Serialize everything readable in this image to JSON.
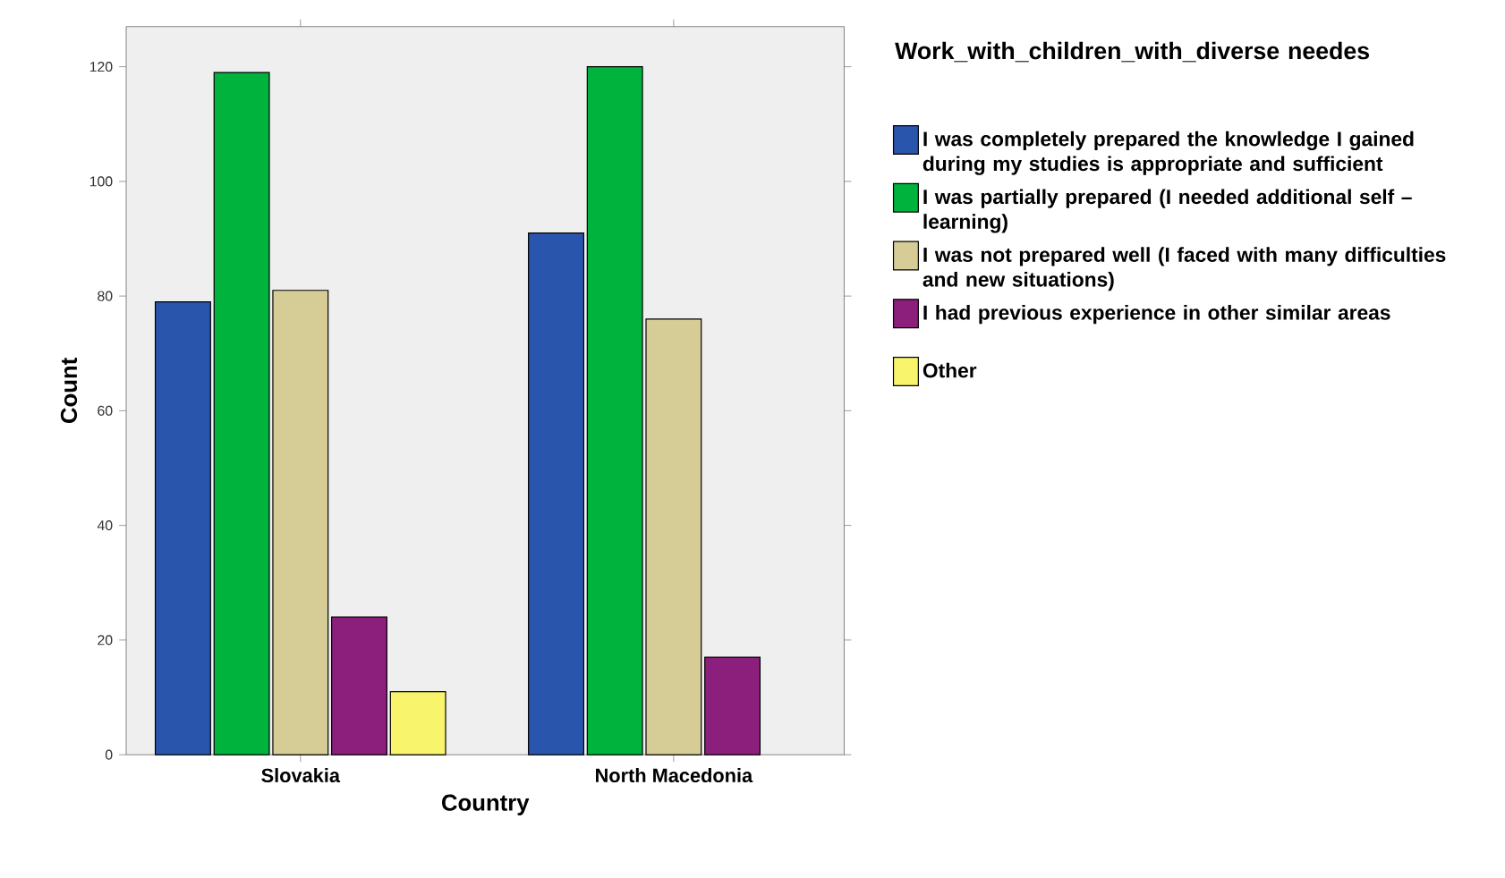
{
  "chart_data": {
    "type": "bar",
    "xlabel": "Country",
    "ylabel": "Count",
    "legend_title": "Work_with_children_with_diverse needes",
    "categories": [
      "Slovakia",
      "North Macedonia"
    ],
    "series": [
      {
        "name": "I was completely prepared the knowledge I gained during my studies is appropriate and sufficient",
        "color": "#2a55ad",
        "values": [
          79,
          91
        ]
      },
      {
        "name": "I was partially prepared (I needed additional self – learning)",
        "color": "#00b33c",
        "values": [
          119,
          120
        ]
      },
      {
        "name": "I was not prepared well (I faced with many difficulties and new situations)",
        "color": "#d6cd96",
        "values": [
          81,
          76
        ]
      },
      {
        "name": "I had previous experience in other similar areas",
        "color": "#8c1f7c",
        "values": [
          24,
          17
        ]
      },
      {
        "name": "Other",
        "color": "#f8f46c",
        "values": [
          11,
          null
        ]
      }
    ],
    "ylim": [
      0,
      127
    ],
    "yticks": [
      0,
      20,
      40,
      60,
      80,
      100,
      120
    ],
    "legend": "right"
  }
}
